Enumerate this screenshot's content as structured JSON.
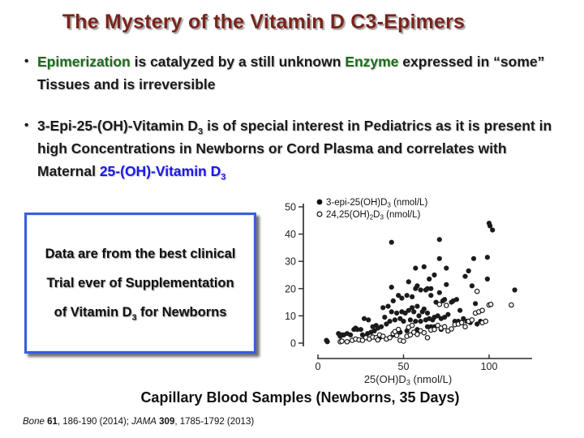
{
  "slide": {
    "title": "The Mystery of the Vitamin D C3-Epimers",
    "bullet_glyph": "•",
    "colors": {
      "title": "#7a241c",
      "green": "#1e6b1e",
      "blue": "#1a18e8",
      "text": "#1a1a1a",
      "box_border": "#3b5ede"
    },
    "bullets": [
      {
        "segments": [
          {
            "t": "Epimerization",
            "c": "green"
          },
          {
            "t": " is catalyzed by a still unknown "
          },
          {
            "t": "Enzyme",
            "c": "green"
          },
          {
            "t": " expressed in “some” Tissues and is irreversible"
          }
        ]
      },
      {
        "segments": [
          {
            "t": "3-Epi-25-(OH)-Vitamin D"
          },
          {
            "t": "3",
            "sub": true
          },
          {
            "t": " is of special interest in Pediatrics as it is present in high Concentrations in Newborns or Cord Plasma and correlates with Maternal "
          },
          {
            "t": "25-(OH)-Vitamin D",
            "c": "blue"
          },
          {
            "t": "3",
            "c": "blue",
            "sub": true
          }
        ]
      }
    ],
    "callout": {
      "lines": [
        [
          {
            "t": "Data are from the best clinical"
          }
        ],
        [
          {
            "t": "Trial ever of Supplementation"
          }
        ],
        [
          {
            "t": "of  Vitamin D"
          },
          {
            "t": "3",
            "sub": true
          },
          {
            "t": "  for Newborns"
          }
        ]
      ]
    },
    "caption": "Capillary Blood Samples (Newborns, 35 Days)",
    "footer": {
      "segments": [
        {
          "t": "Bone",
          "i": true
        },
        {
          "t": " "
        },
        {
          "t": "61",
          "b": true
        },
        {
          "t": ", 186-190 (2014); "
        },
        {
          "t": "JAMA",
          "i": true
        },
        {
          "t": " "
        },
        {
          "t": "309",
          "b": true
        },
        {
          "t": ", 1785-1792 (2013)"
        }
      ]
    }
  },
  "chart_data": {
    "type": "scatter",
    "xlabel_segments": [
      {
        "t": "25(OH)D"
      },
      {
        "t": "3",
        "sub": true
      },
      {
        "t": " (nmol/L)"
      }
    ],
    "xticks": [
      0,
      50,
      100
    ],
    "yticks": [
      0,
      10,
      20,
      30,
      40,
      50
    ],
    "xlim": [
      0,
      123
    ],
    "ylim": [
      0,
      50
    ],
    "legend": [
      {
        "marker": "filled",
        "segments": [
          {
            "t": "3-epi-25(OH)D"
          },
          {
            "t": "3",
            "sub": true
          },
          {
            "t": " (nmol/L)"
          }
        ]
      },
      {
        "marker": "open",
        "segments": [
          {
            "t": "24,25(OH)"
          },
          {
            "t": "2",
            "sub": true
          },
          {
            "t": "D"
          },
          {
            "t": "3",
            "sub": true
          },
          {
            "t": " (nmol/L)"
          }
        ]
      }
    ],
    "series": [
      {
        "name": "3-epi-25(OH)D3 (nmol/L)",
        "marker": "filled",
        "points": [
          [
            5,
            1
          ],
          [
            5.5,
            0.5
          ],
          [
            12,
            3.5
          ],
          [
            13,
            2.5
          ],
          [
            14,
            3
          ],
          [
            15,
            3
          ],
          [
            17,
            3.5
          ],
          [
            19,
            3
          ],
          [
            21,
            5
          ],
          [
            22,
            5.5
          ],
          [
            23,
            5
          ],
          [
            25,
            5
          ],
          [
            26,
            3
          ],
          [
            27,
            9
          ],
          [
            28,
            2.5
          ],
          [
            29,
            3.5
          ],
          [
            29.5,
            8.5
          ],
          [
            31,
            4
          ],
          [
            32,
            6
          ],
          [
            33,
            4.5
          ],
          [
            34,
            6.5
          ],
          [
            35,
            5.5
          ],
          [
            36,
            2
          ],
          [
            37,
            6
          ],
          [
            38,
            13
          ],
          [
            39,
            9.5
          ],
          [
            40,
            7
          ],
          [
            41,
            13.5
          ],
          [
            42,
            8
          ],
          [
            43,
            37
          ],
          [
            43,
            20.5
          ],
          [
            43,
            11.5
          ],
          [
            44,
            15.5
          ],
          [
            44,
            3
          ],
          [
            45,
            8.5
          ],
          [
            46,
            11
          ],
          [
            47,
            17.5
          ],
          [
            48,
            9
          ],
          [
            48,
            4
          ],
          [
            49,
            16.5
          ],
          [
            49,
            11.5
          ],
          [
            50,
            8
          ],
          [
            51,
            11
          ],
          [
            52,
            17.5
          ],
          [
            52,
            4.5
          ],
          [
            53,
            22.5
          ],
          [
            53,
            12
          ],
          [
            54,
            8.5
          ],
          [
            55,
            17
          ],
          [
            55,
            13
          ],
          [
            56,
            11.5
          ],
          [
            57,
            27.5
          ],
          [
            57,
            20
          ],
          [
            57,
            8
          ],
          [
            58,
            21
          ],
          [
            58,
            13.5
          ],
          [
            58,
            5
          ],
          [
            59,
            10
          ],
          [
            60,
            19.5
          ],
          [
            60,
            8
          ],
          [
            61,
            11.5
          ],
          [
            62,
            28
          ],
          [
            62,
            12.5
          ],
          [
            63,
            19.5
          ],
          [
            63,
            8.5
          ],
          [
            64,
            20
          ],
          [
            64,
            11
          ],
          [
            64,
            6
          ],
          [
            65,
            23.5
          ],
          [
            65,
            9
          ],
          [
            66,
            20
          ],
          [
            66,
            17.5
          ],
          [
            66,
            6
          ],
          [
            67,
            8.5
          ],
          [
            68,
            25
          ],
          [
            68,
            9.5
          ],
          [
            68,
            6
          ],
          [
            69,
            15
          ],
          [
            70,
            10
          ],
          [
            71,
            38
          ],
          [
            71,
            31
          ],
          [
            71,
            18.5
          ],
          [
            72,
            9
          ],
          [
            72,
            5
          ],
          [
            73,
            15.5
          ],
          [
            74,
            16
          ],
          [
            74,
            9.5
          ],
          [
            75,
            27.5
          ],
          [
            75,
            21.5
          ],
          [
            76,
            10.5
          ],
          [
            78,
            15
          ],
          [
            79,
            15.5
          ],
          [
            80,
            8
          ],
          [
            81,
            16
          ],
          [
            82,
            8
          ],
          [
            83,
            12
          ],
          [
            85,
            9
          ],
          [
            86,
            24.5
          ],
          [
            87,
            8
          ],
          [
            88,
            26.5
          ],
          [
            89,
            7.5
          ],
          [
            90,
            21
          ],
          [
            91,
            31
          ],
          [
            92,
            14.5
          ],
          [
            93,
            7
          ],
          [
            95,
            8
          ],
          [
            99,
            31.5
          ],
          [
            99,
            23.5
          ],
          [
            100,
            44
          ],
          [
            100.5,
            43
          ],
          [
            102,
            41.5
          ],
          [
            115,
            19.5
          ]
        ]
      },
      {
        "name": "24,25(OH)2D3 (nmol/L)",
        "marker": "open",
        "points": [
          [
            13,
            0.5
          ],
          [
            14,
            0.7
          ],
          [
            17,
            0.5
          ],
          [
            20,
            1
          ],
          [
            22,
            1.5
          ],
          [
            24,
            1.2
          ],
          [
            26,
            1
          ],
          [
            28,
            2
          ],
          [
            30,
            1.5
          ],
          [
            32,
            2.2
          ],
          [
            34,
            2
          ],
          [
            35,
            1.2
          ],
          [
            36,
            3
          ],
          [
            38,
            2.5
          ],
          [
            40,
            1.5
          ],
          [
            42,
            2
          ],
          [
            44,
            3.5
          ],
          [
            45,
            4.2
          ],
          [
            46,
            2.8
          ],
          [
            47,
            5
          ],
          [
            48,
            1
          ],
          [
            50,
            0.7
          ],
          [
            52,
            2.5
          ],
          [
            53,
            5.8
          ],
          [
            54,
            3
          ],
          [
            55,
            6.5
          ],
          [
            56,
            4
          ],
          [
            58,
            3.2
          ],
          [
            60,
            4.5
          ],
          [
            62,
            3.8
          ],
          [
            64,
            2
          ],
          [
            66,
            4.8
          ],
          [
            68,
            5
          ],
          [
            70,
            6.5
          ],
          [
            71,
            14.2
          ],
          [
            72,
            5.5
          ],
          [
            74,
            6
          ],
          [
            75,
            13.8
          ],
          [
            76,
            4.5
          ],
          [
            78,
            5.2
          ],
          [
            80,
            6.8
          ],
          [
            82,
            7
          ],
          [
            84,
            7.5
          ],
          [
            86,
            6
          ],
          [
            88,
            8
          ],
          [
            90,
            8.5
          ],
          [
            92,
            11
          ],
          [
            93,
            19
          ],
          [
            94,
            11.5
          ],
          [
            96,
            12
          ],
          [
            96,
            7.5
          ],
          [
            98,
            8
          ],
          [
            100,
            14
          ],
          [
            101,
            14.2
          ],
          [
            113,
            14
          ]
        ]
      }
    ]
  }
}
